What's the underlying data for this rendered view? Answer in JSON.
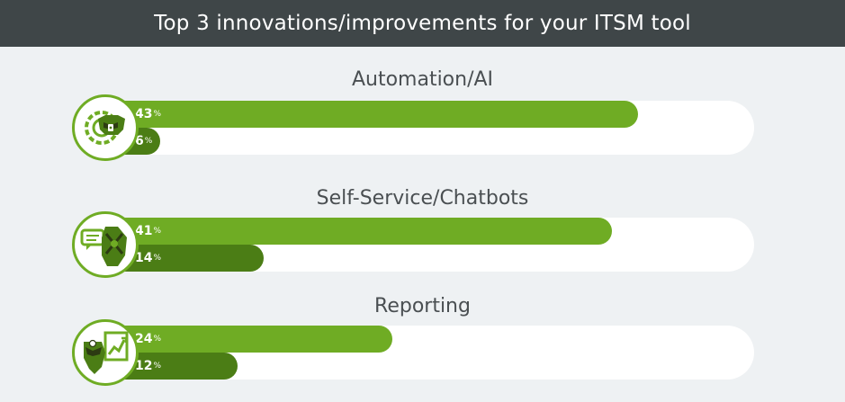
{
  "header": {
    "title": "Top 3 innovations/improvements for your ITSM tool"
  },
  "chart_data": {
    "type": "bar",
    "orientation": "horizontal",
    "title": "Top 3 innovations/improvements for your ITSM tool",
    "categories": [
      "Automation/AI",
      "Self-Service/Chatbots",
      "Reporting"
    ],
    "series": [
      {
        "values": [
          43,
          41,
          24
        ]
      },
      {
        "values": [
          6,
          14,
          12
        ]
      }
    ],
    "value_suffix": "%",
    "xlim": [
      0,
      52
    ],
    "grid": false,
    "colors": {
      "primary": "#6fac24",
      "secondary": "#4b7d15",
      "track": "#ffffff",
      "header_bg": "#3f4648"
    },
    "icons": [
      "gear-cogs-icon",
      "chat-bubble-icon",
      "report-chart-icon"
    ]
  }
}
